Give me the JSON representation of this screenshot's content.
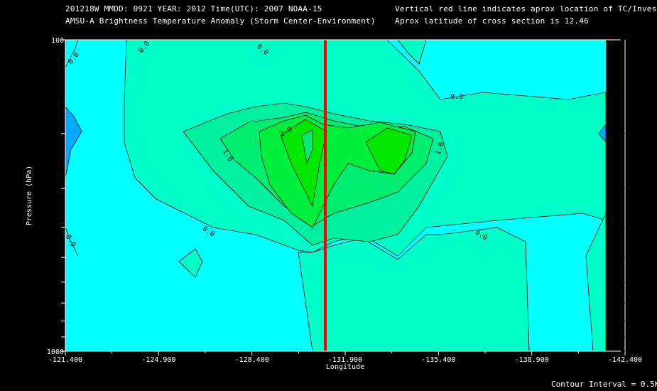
{
  "header": {
    "line1_left": "201218W  MMDD: 0921 YEAR: 2012 Time(UTC): 2007 NOAA-15",
    "line2_left": "AMSU-A Brightness Temperature Anomaly (Storm Center-Environment)",
    "line1_right": "Vertical red line indicates aprox location of TC/Invest",
    "line2_right": "Aprox latitude of cross section is 12.46"
  },
  "footer": {
    "contour_interval": "Contour Interval = 0.5K"
  },
  "chart_data": {
    "type": "contour",
    "xlabel": "Longitude",
    "ylabel": "Pressure (hPa)",
    "x_ticks": [
      "-121.400",
      "-124.900",
      "-128.400",
      "-131.900",
      "-135.400",
      "-138.900",
      "-142.400"
    ],
    "x_range": [
      -121.4,
      -142.4
    ],
    "y_range": [
      1000,
      100
    ],
    "y_scale": "log",
    "y_tick_labels": [
      "100",
      "1000"
    ],
    "tc_longitude": -130.7,
    "contour_interval_K": 0.5,
    "contour_labels": [
      "0.0",
      "0.0",
      "0.0",
      "0.0",
      "0.0",
      "0.0",
      "0.0",
      "1.0",
      "1.0",
      "2.0"
    ],
    "colors": {
      "background": "#000000",
      "cyan": "#00ffff",
      "level_0": "#00ffc8",
      "level_0_5": "#00f0a0",
      "level_1": "#00ee70",
      "level_1_5": "#00ee3c",
      "level_2": "#00e800",
      "negative": "#00aaff",
      "tc_line": "#ff0000"
    }
  }
}
